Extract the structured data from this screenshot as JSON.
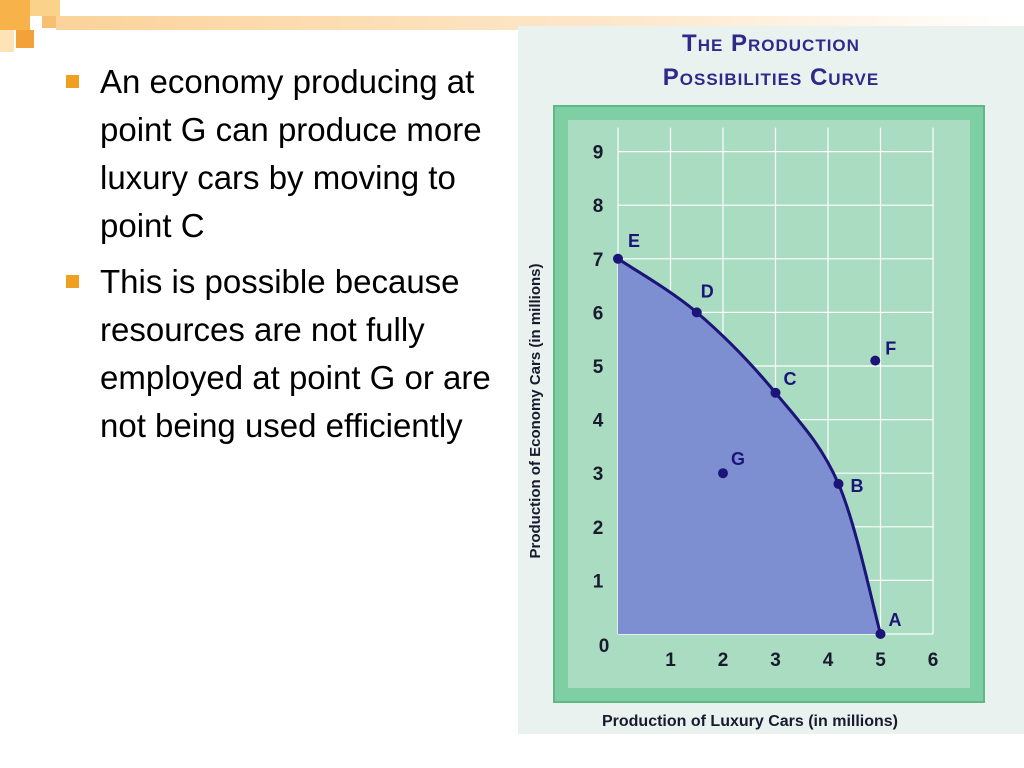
{
  "slide": {
    "bullets": [
      {
        "text": "An economy producing at point G can produce more luxury cars by moving to point C"
      },
      {
        "text": "This is possible because resources are not fully employed at point G or are not being used efficiently"
      }
    ]
  },
  "colors": {
    "accent_orange": "#f0a020",
    "title_navy": "#2d2a8c",
    "frame_green": "#7ecfa4",
    "plot_green": "#a9dcc0",
    "shade_blue": "#7d8fd0",
    "curve_navy": "#1c1478"
  },
  "chart_data": {
    "type": "scatter",
    "title_line1": "The Production",
    "title_line2": "Possibilities Curve",
    "xlabel": "Production of Luxury Cars (in millions)",
    "ylabel": "Production of Economy Cars (in millions)",
    "xlim": [
      0,
      6
    ],
    "ylim": [
      0,
      9
    ],
    "x_ticks": [
      1,
      2,
      3,
      4,
      5,
      6
    ],
    "y_ticks": [
      1,
      2,
      3,
      4,
      5,
      6,
      7,
      8,
      9
    ],
    "origin_label": "0",
    "grid": true,
    "curve_points": [
      {
        "label": "E",
        "x": 0,
        "y": 7
      },
      {
        "label": "D",
        "x": 1.5,
        "y": 6
      },
      {
        "label": "C",
        "x": 3,
        "y": 4.5
      },
      {
        "label": "B",
        "x": 4.2,
        "y": 2.8
      },
      {
        "label": "A",
        "x": 5,
        "y": 0
      }
    ],
    "other_points": [
      {
        "label": "F",
        "x": 4.9,
        "y": 5.1
      },
      {
        "label": "G",
        "x": 2,
        "y": 3
      }
    ]
  }
}
